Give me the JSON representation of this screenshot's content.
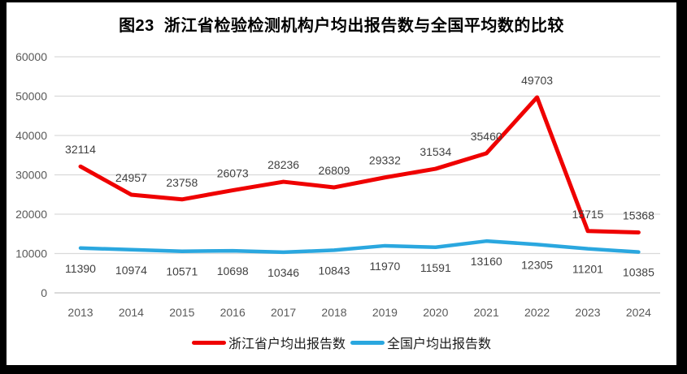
{
  "chart_data": {
    "type": "line",
    "title": "图23  浙江省检验检测机构户均出报告数与全国平均数的比较",
    "categories": [
      "2013",
      "2014",
      "2015",
      "2016",
      "2017",
      "2018",
      "2019",
      "2020",
      "2021",
      "2022",
      "2023",
      "2024"
    ],
    "series": [
      {
        "name": "浙江省户均出报告数",
        "color": "#ef0000",
        "values": [
          32114,
          24957,
          23758,
          26073,
          28236,
          26809,
          29332,
          31534,
          35460,
          49703,
          15715,
          15368
        ]
      },
      {
        "name": "全国户均出报告数",
        "color": "#2aa7df",
        "values": [
          11390,
          10974,
          10571,
          10698,
          10346,
          10843,
          11970,
          11591,
          13160,
          12305,
          11201,
          10385
        ]
      }
    ],
    "xlabel": "",
    "ylabel": "",
    "ylim": [
      0,
      60000
    ],
    "y_ticks": [
      0,
      10000,
      20000,
      30000,
      40000,
      50000,
      60000
    ],
    "grid": "horizontal",
    "legend_position": "bottom",
    "data_labels": true,
    "colors": {
      "gridline": "#d9d9d9",
      "axis_line": "#c3c3c3",
      "tick_label": "#595959",
      "data_label": "#404040",
      "title": "#000000",
      "frame": "#000000",
      "background": "#ffffff"
    }
  }
}
